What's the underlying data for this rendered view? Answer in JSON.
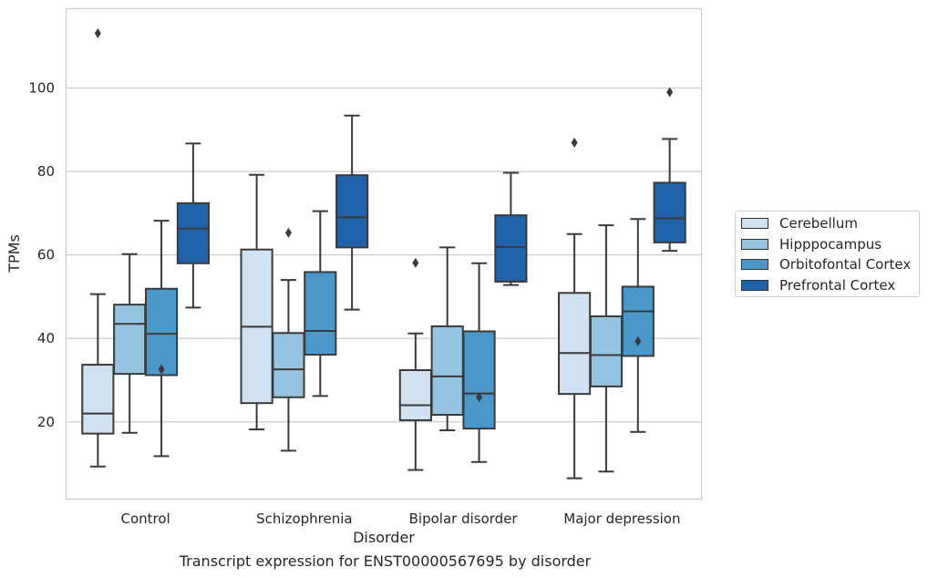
{
  "chart_data": {
    "type": "box",
    "title": "",
    "caption": "Transcript expression for ENST00000567695 by disorder",
    "xlabel": "Disorder",
    "ylabel": "TPMs",
    "ylim": [
      1.5,
      119
    ],
    "yticks": [
      20,
      40,
      60,
      80,
      100
    ],
    "grid": "horizontal",
    "legend_placement": "right",
    "categories": [
      "Control",
      "Schizophrenia",
      "Bipolar disorder",
      "Major depression"
    ],
    "series": [
      {
        "name": "Cerebellum",
        "color": "#d0e1f2",
        "boxes": [
          {
            "whisker_low": 9.3,
            "q1": 17.2,
            "median": 22.0,
            "q3": 33.7,
            "whisker_high": 50.6,
            "outliers": [
              113.1
            ]
          },
          {
            "whisker_low": 18.2,
            "q1": 24.5,
            "median": 42.8,
            "q3": 61.3,
            "whisker_high": 79.2,
            "outliers": []
          },
          {
            "whisker_low": 8.5,
            "q1": 20.4,
            "median": 24.0,
            "q3": 32.4,
            "whisker_high": 41.2,
            "outliers": [
              58.1
            ]
          },
          {
            "whisker_low": 6.5,
            "q1": 26.7,
            "median": 36.5,
            "q3": 50.9,
            "whisker_high": 65.0,
            "outliers": [
              86.9
            ]
          }
        ]
      },
      {
        "name": "Hipppocampus",
        "color": "#94c4df",
        "boxes": [
          {
            "whisker_low": 17.4,
            "q1": 31.5,
            "median": 43.5,
            "q3": 48.1,
            "whisker_high": 60.2,
            "outliers": []
          },
          {
            "whisker_low": 13.1,
            "q1": 25.9,
            "median": 32.6,
            "q3": 41.3,
            "whisker_high": 54.0,
            "outliers": [
              65.3
            ]
          },
          {
            "whisker_low": 18.0,
            "q1": 21.7,
            "median": 30.9,
            "q3": 42.9,
            "whisker_high": 61.8,
            "outliers": []
          },
          {
            "whisker_low": 8.1,
            "q1": 28.5,
            "median": 36.0,
            "q3": 45.3,
            "whisker_high": 67.1,
            "outliers": []
          }
        ]
      },
      {
        "name": "Orbitofontal Cortex",
        "color": "#4a98c9",
        "boxes": [
          {
            "whisker_low": 11.8,
            "q1": 31.2,
            "median": 41.1,
            "q3": 51.9,
            "whisker_high": 68.2,
            "outliers": [
              32.6
            ]
          },
          {
            "whisker_low": 26.2,
            "q1": 36.1,
            "median": 41.8,
            "q3": 55.9,
            "whisker_high": 70.5,
            "outliers": []
          },
          {
            "whisker_low": 10.4,
            "q1": 18.4,
            "median": 26.8,
            "q3": 41.7,
            "whisker_high": 58.0,
            "outliers": [
              25.9
            ]
          },
          {
            "whisker_low": 17.6,
            "q1": 35.8,
            "median": 46.5,
            "q3": 52.4,
            "whisker_high": 68.6,
            "outliers": [
              39.3
            ]
          }
        ]
      },
      {
        "name": "Prefrontal Cortex",
        "color": "#2163aa",
        "boxes": [
          {
            "whisker_low": 47.4,
            "q1": 58.0,
            "median": 66.3,
            "q3": 72.4,
            "whisker_high": 86.7,
            "outliers": []
          },
          {
            "whisker_low": 46.9,
            "q1": 61.8,
            "median": 69.0,
            "q3": 79.1,
            "whisker_high": 93.4,
            "outliers": []
          },
          {
            "whisker_low": 52.8,
            "q1": 53.6,
            "median": 61.9,
            "q3": 69.5,
            "whisker_high": 79.7,
            "outliers": []
          },
          {
            "whisker_low": 61.0,
            "q1": 63.0,
            "median": 68.8,
            "q3": 77.3,
            "whisker_high": 87.8,
            "outliers": [
              99.0
            ]
          }
        ]
      }
    ]
  }
}
